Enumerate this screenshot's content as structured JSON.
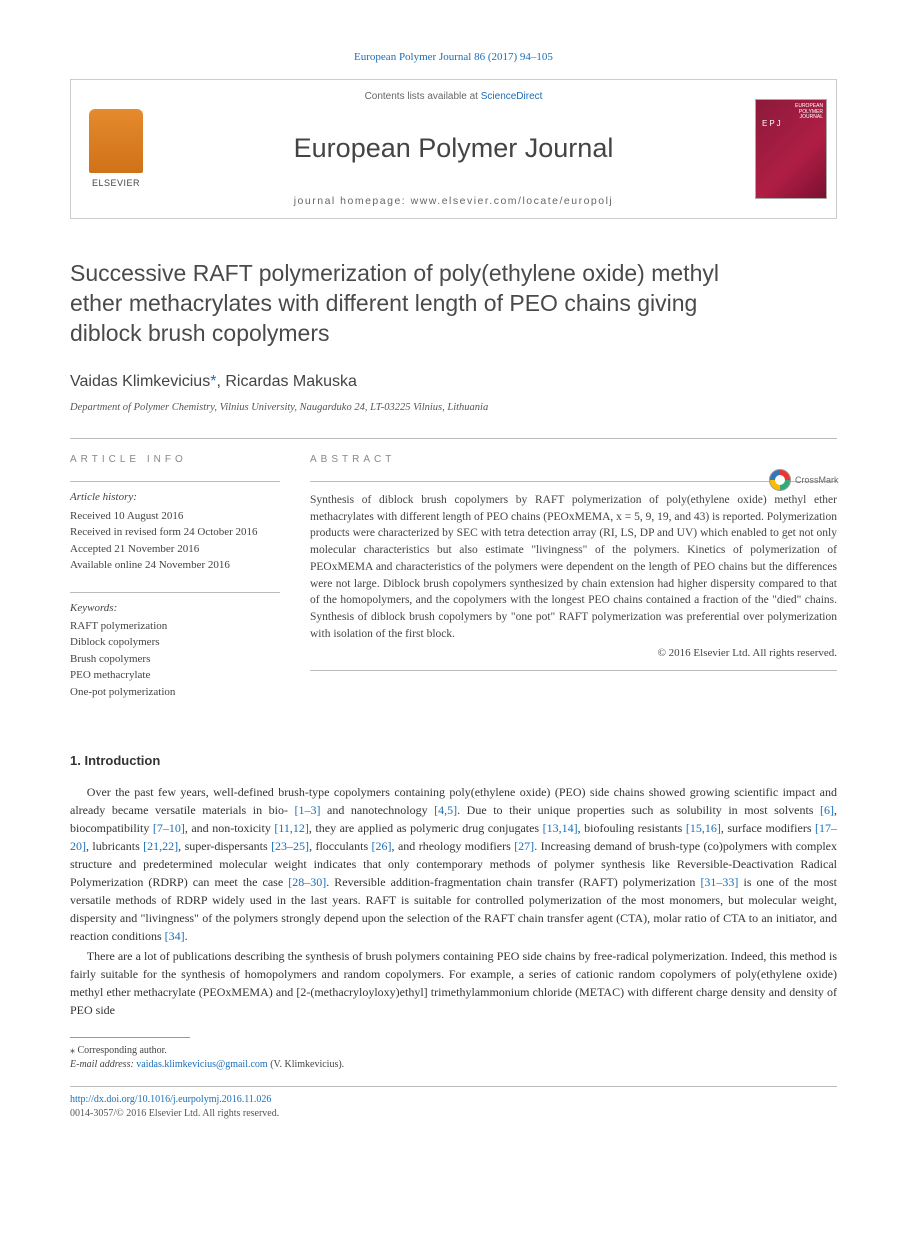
{
  "header": {
    "citation": "European Polymer Journal 86 (2017) 94–105",
    "contents_label": "Contents lists available at ",
    "contents_link": "ScienceDirect",
    "journal": "European Polymer Journal",
    "homepage_label": "journal homepage: www.elsevier.com/locate/europolj",
    "publisher_logo_label": "ELSEVIER"
  },
  "crossmark": {
    "label": "CrossMark"
  },
  "article": {
    "title": "Successive RAFT polymerization of poly(ethylene oxide) methyl ether methacrylates with different length of PEO chains giving diblock brush copolymers",
    "authors_html": "Vaidas Klimkevicius",
    "authors_corr_mark": "*",
    "authors_rest": ", Ricardas Makuska",
    "affiliation": "Department of Polymer Chemistry, Vilnius University, Naugarduko 24, LT-03225 Vilnius, Lithuania"
  },
  "info": {
    "heading": "ARTICLE INFO",
    "history_label": "Article history:",
    "history": [
      "Received 10 August 2016",
      "Received in revised form 24 October 2016",
      "Accepted 21 November 2016",
      "Available online 24 November 2016"
    ],
    "keywords_label": "Keywords:",
    "keywords": [
      "RAFT polymerization",
      "Diblock copolymers",
      "Brush copolymers",
      "PEO methacrylate",
      "One-pot polymerization"
    ]
  },
  "abstract": {
    "heading": "ABSTRACT",
    "text": "Synthesis of diblock brush copolymers by RAFT polymerization of poly(ethylene oxide) methyl ether methacrylates with different length of PEO chains (PEOxMEMA, x = 5, 9, 19, and 43) is reported. Polymerization products were characterized by SEC with tetra detection array (RI, LS, DP and UV) which enabled to get not only molecular characteristics but also estimate \"livingness\" of the polymers. Kinetics of polymerization of PEOxMEMA and characteristics of the polymers were dependent on the length of PEO chains but the differences were not large. Diblock brush copolymers synthesized by chain extension had higher dispersity compared to that of the homopolymers, and the copolymers with the longest PEO chains contained a fraction of the \"died\" chains. Synthesis of diblock brush copolymers by \"one pot\" RAFT polymerization was preferential over polymerization with isolation of the first block.",
    "copyright": "© 2016 Elsevier Ltd. All rights reserved."
  },
  "section1": {
    "heading": "1. Introduction",
    "para1": {
      "text_parts": [
        "Over the past few years, well-defined brush-type copolymers containing poly(ethylene oxide) (PEO) side chains showed growing scientific impact and already became versatile materials in bio- ",
        " and nanotechnology ",
        ". Due to their unique properties such as solubility in most solvents ",
        ", biocompatibility ",
        ", and non-toxicity ",
        ", they are applied as polymeric drug conjugates ",
        ", biofouling resistants ",
        ", surface modifiers ",
        ", lubricants ",
        ", super-dispersants ",
        ", flocculants ",
        ", and rheology modifiers ",
        ". Increasing demand of brush-type (co)polymers with complex structure and predetermined molecular weight indicates that only contemporary methods of polymer synthesis like Reversible-Deactivation Radical Polymerization (RDRP) can meet the case ",
        ". Reversible addition-fragmentation chain transfer (RAFT) polymerization ",
        " is one of the most versatile methods of RDRP widely used in the last years. RAFT is suitable for controlled polymerization of the most monomers, but molecular weight, dispersity and \"livingness\" of the polymers strongly depend upon the selection of the RAFT chain transfer agent (CTA), molar ratio of CTA to an initiator, and reaction conditions ",
        "."
      ],
      "cites": [
        "[1–3]",
        "[4,5]",
        "[6]",
        "[7–10]",
        "[11,12]",
        "[13,14]",
        "[15,16]",
        "[17–20]",
        "[21,22]",
        "[23–25]",
        "[26]",
        "[27]",
        "[28–30]",
        "[31–33]",
        "[34]"
      ]
    },
    "para2": "There are a lot of publications describing the synthesis of brush polymers containing PEO side chains by free-radical polymerization. Indeed, this method is fairly suitable for the synthesis of homopolymers and random copolymers. For example, a series of cationic random copolymers of poly(ethylene oxide) methyl ether methacrylate (PEOxMEMA) and [2-(methacryloyloxy)ethyl] trimethylammonium chloride (METAC) with different charge density and density of PEO side"
  },
  "footnote": {
    "corr_label": "⁎ Corresponding author.",
    "email_label": "E-mail address: ",
    "email": "vaidas.klimkevicius@gmail.com",
    "email_tail": " (V. Klimkevicius)."
  },
  "footer": {
    "doi": "http://dx.doi.org/10.1016/j.eurpolymj.2016.11.026",
    "issn_line": "0014-3057/© 2016 Elsevier Ltd. All rights reserved."
  },
  "colors": {
    "link": "#1a6eb8",
    "text": "#333333",
    "rule": "#bbbbbb"
  }
}
